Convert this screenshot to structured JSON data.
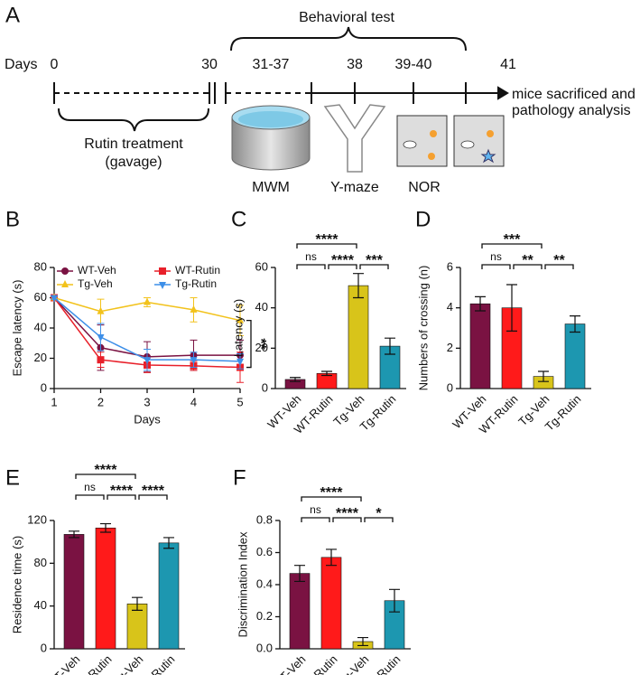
{
  "timeline": {
    "panel": "A",
    "title": "Behavioral test",
    "axis_label": "Days",
    "ticks": [
      "0",
      "30",
      "31-37",
      "38",
      "39-40",
      "41"
    ],
    "end_note": [
      "mice sacrificed and",
      "pathology analysis"
    ],
    "treatment": [
      "Rutin treatment",
      "(gavage)"
    ],
    "tests": [
      "MWM",
      "Y-maze",
      "NOR"
    ]
  },
  "chart_data": [
    {
      "type": "line",
      "panel": "B",
      "x_label": "Days",
      "y_label": "Escape latency (s)",
      "x": [
        1,
        2,
        3,
        4,
        5
      ],
      "xlim": [
        1,
        5
      ],
      "xticks": [
        1,
        2,
        3,
        4,
        5
      ],
      "ylim": [
        0,
        80
      ],
      "yticks": [
        0,
        20,
        40,
        60,
        80
      ],
      "annotation": "**",
      "series": [
        {
          "name": "WT-Veh",
          "color": "#7a1242",
          "marker": "circle",
          "values": [
            60,
            27,
            21,
            22,
            22
          ],
          "errors": [
            1,
            15,
            10,
            10,
            10
          ]
        },
        {
          "name": "WT-Rutin",
          "color": "#e8202a",
          "marker": "square",
          "values": [
            60,
            19,
            15.5,
            15,
            14
          ],
          "errors": [
            1,
            5,
            5,
            3,
            10
          ]
        },
        {
          "name": "Tg-Veh",
          "color": "#f2c21b",
          "marker": "triangle-up",
          "values": [
            60,
            51,
            57,
            52,
            45
          ],
          "errors": [
            1,
            8,
            3,
            8,
            10
          ]
        },
        {
          "name": "Tg-Rutin",
          "color": "#3d8fe8",
          "marker": "triangle-down",
          "values": [
            60,
            34,
            19,
            19,
            18
          ],
          "errors": [
            1,
            9,
            7,
            5,
            5
          ]
        }
      ]
    },
    {
      "type": "bar",
      "panel": "C",
      "y_label": "Latency (s)",
      "categories": [
        "WT-Veh",
        "WT-Rutin",
        "Tg-Veh",
        "Tg-Rutin"
      ],
      "values": [
        4.5,
        7.5,
        51,
        21
      ],
      "errors": [
        1,
        1,
        6,
        4
      ],
      "colors": [
        "#7a1242",
        "#ff1a1a",
        "#d8c41a",
        "#1d97b0"
      ],
      "ylim": [
        0,
        60
      ],
      "yticks": [
        0,
        20,
        40,
        60
      ],
      "annotations": [
        {
          "between": [
            "WT-Veh",
            "Tg-Veh"
          ],
          "text": "****"
        },
        {
          "between": [
            "WT-Veh",
            "WT-Rutin"
          ],
          "text": "ns"
        },
        {
          "between": [
            "WT-Rutin",
            "Tg-Veh"
          ],
          "text": "****"
        },
        {
          "between": [
            "Tg-Veh",
            "Tg-Rutin"
          ],
          "text": "***"
        }
      ]
    },
    {
      "type": "bar",
      "panel": "D",
      "y_label": "Numbers of crossing (n)",
      "categories": [
        "WT-Veh",
        "WT-Rutin",
        "Tg-Veh",
        "Tg-Rutin"
      ],
      "values": [
        4.2,
        4.0,
        0.6,
        3.2
      ],
      "errors": [
        0.35,
        1.15,
        0.25,
        0.4
      ],
      "colors": [
        "#7a1242",
        "#ff1a1a",
        "#d8c41a",
        "#1d97b0"
      ],
      "ylim": [
        0,
        6
      ],
      "yticks": [
        0,
        2,
        4,
        6
      ],
      "annotations": [
        {
          "between": [
            "WT-Veh",
            "Tg-Veh"
          ],
          "text": "***"
        },
        {
          "between": [
            "WT-Veh",
            "WT-Rutin"
          ],
          "text": "ns"
        },
        {
          "between": [
            "WT-Rutin",
            "Tg-Veh"
          ],
          "text": "**"
        },
        {
          "between": [
            "Tg-Veh",
            "Tg-Rutin"
          ],
          "text": "**"
        }
      ]
    },
    {
      "type": "bar",
      "panel": "E",
      "y_label": "Residence time (s)",
      "categories": [
        "WT-Veh",
        "WT-Rutin",
        "Tg-Veh",
        "Tg-Rutin"
      ],
      "values": [
        107,
        113,
        42,
        99
      ],
      "errors": [
        3,
        4,
        6,
        5
      ],
      "colors": [
        "#7a1242",
        "#ff1a1a",
        "#d8c41a",
        "#1d97b0"
      ],
      "ylim": [
        0,
        120
      ],
      "yticks": [
        0,
        40,
        80,
        120
      ],
      "annotations": [
        {
          "between": [
            "WT-Veh",
            "Tg-Veh"
          ],
          "text": "****"
        },
        {
          "between": [
            "WT-Veh",
            "WT-Rutin"
          ],
          "text": "ns"
        },
        {
          "between": [
            "WT-Rutin",
            "Tg-Veh"
          ],
          "text": "****"
        },
        {
          "between": [
            "Tg-Veh",
            "Tg-Rutin"
          ],
          "text": "****"
        }
      ]
    },
    {
      "type": "bar",
      "panel": "F",
      "y_label": "Discrimination Index",
      "categories": [
        "WT-Veh",
        "WT-Rutin",
        "Tg-Veh",
        "Tg-Rutin"
      ],
      "values": [
        0.47,
        0.57,
        0.045,
        0.3
      ],
      "errors": [
        0.05,
        0.05,
        0.025,
        0.07
      ],
      "colors": [
        "#7a1242",
        "#ff1a1a",
        "#d8c41a",
        "#1d97b0"
      ],
      "ylim": [
        0,
        0.8
      ],
      "yticks": [
        {
          "value": 0,
          "label": "0.0"
        },
        0.2,
        0.4,
        0.6,
        0.8
      ],
      "annotations": [
        {
          "between": [
            "WT-Veh",
            "Tg-Veh"
          ],
          "text": "****"
        },
        {
          "between": [
            "WT-Veh",
            "WT-Rutin"
          ],
          "text": "ns"
        },
        {
          "between": [
            "WT-Rutin",
            "Tg-Veh"
          ],
          "text": "****"
        },
        {
          "between": [
            "Tg-Veh",
            "Tg-Rutin"
          ],
          "text": "*"
        }
      ]
    }
  ]
}
